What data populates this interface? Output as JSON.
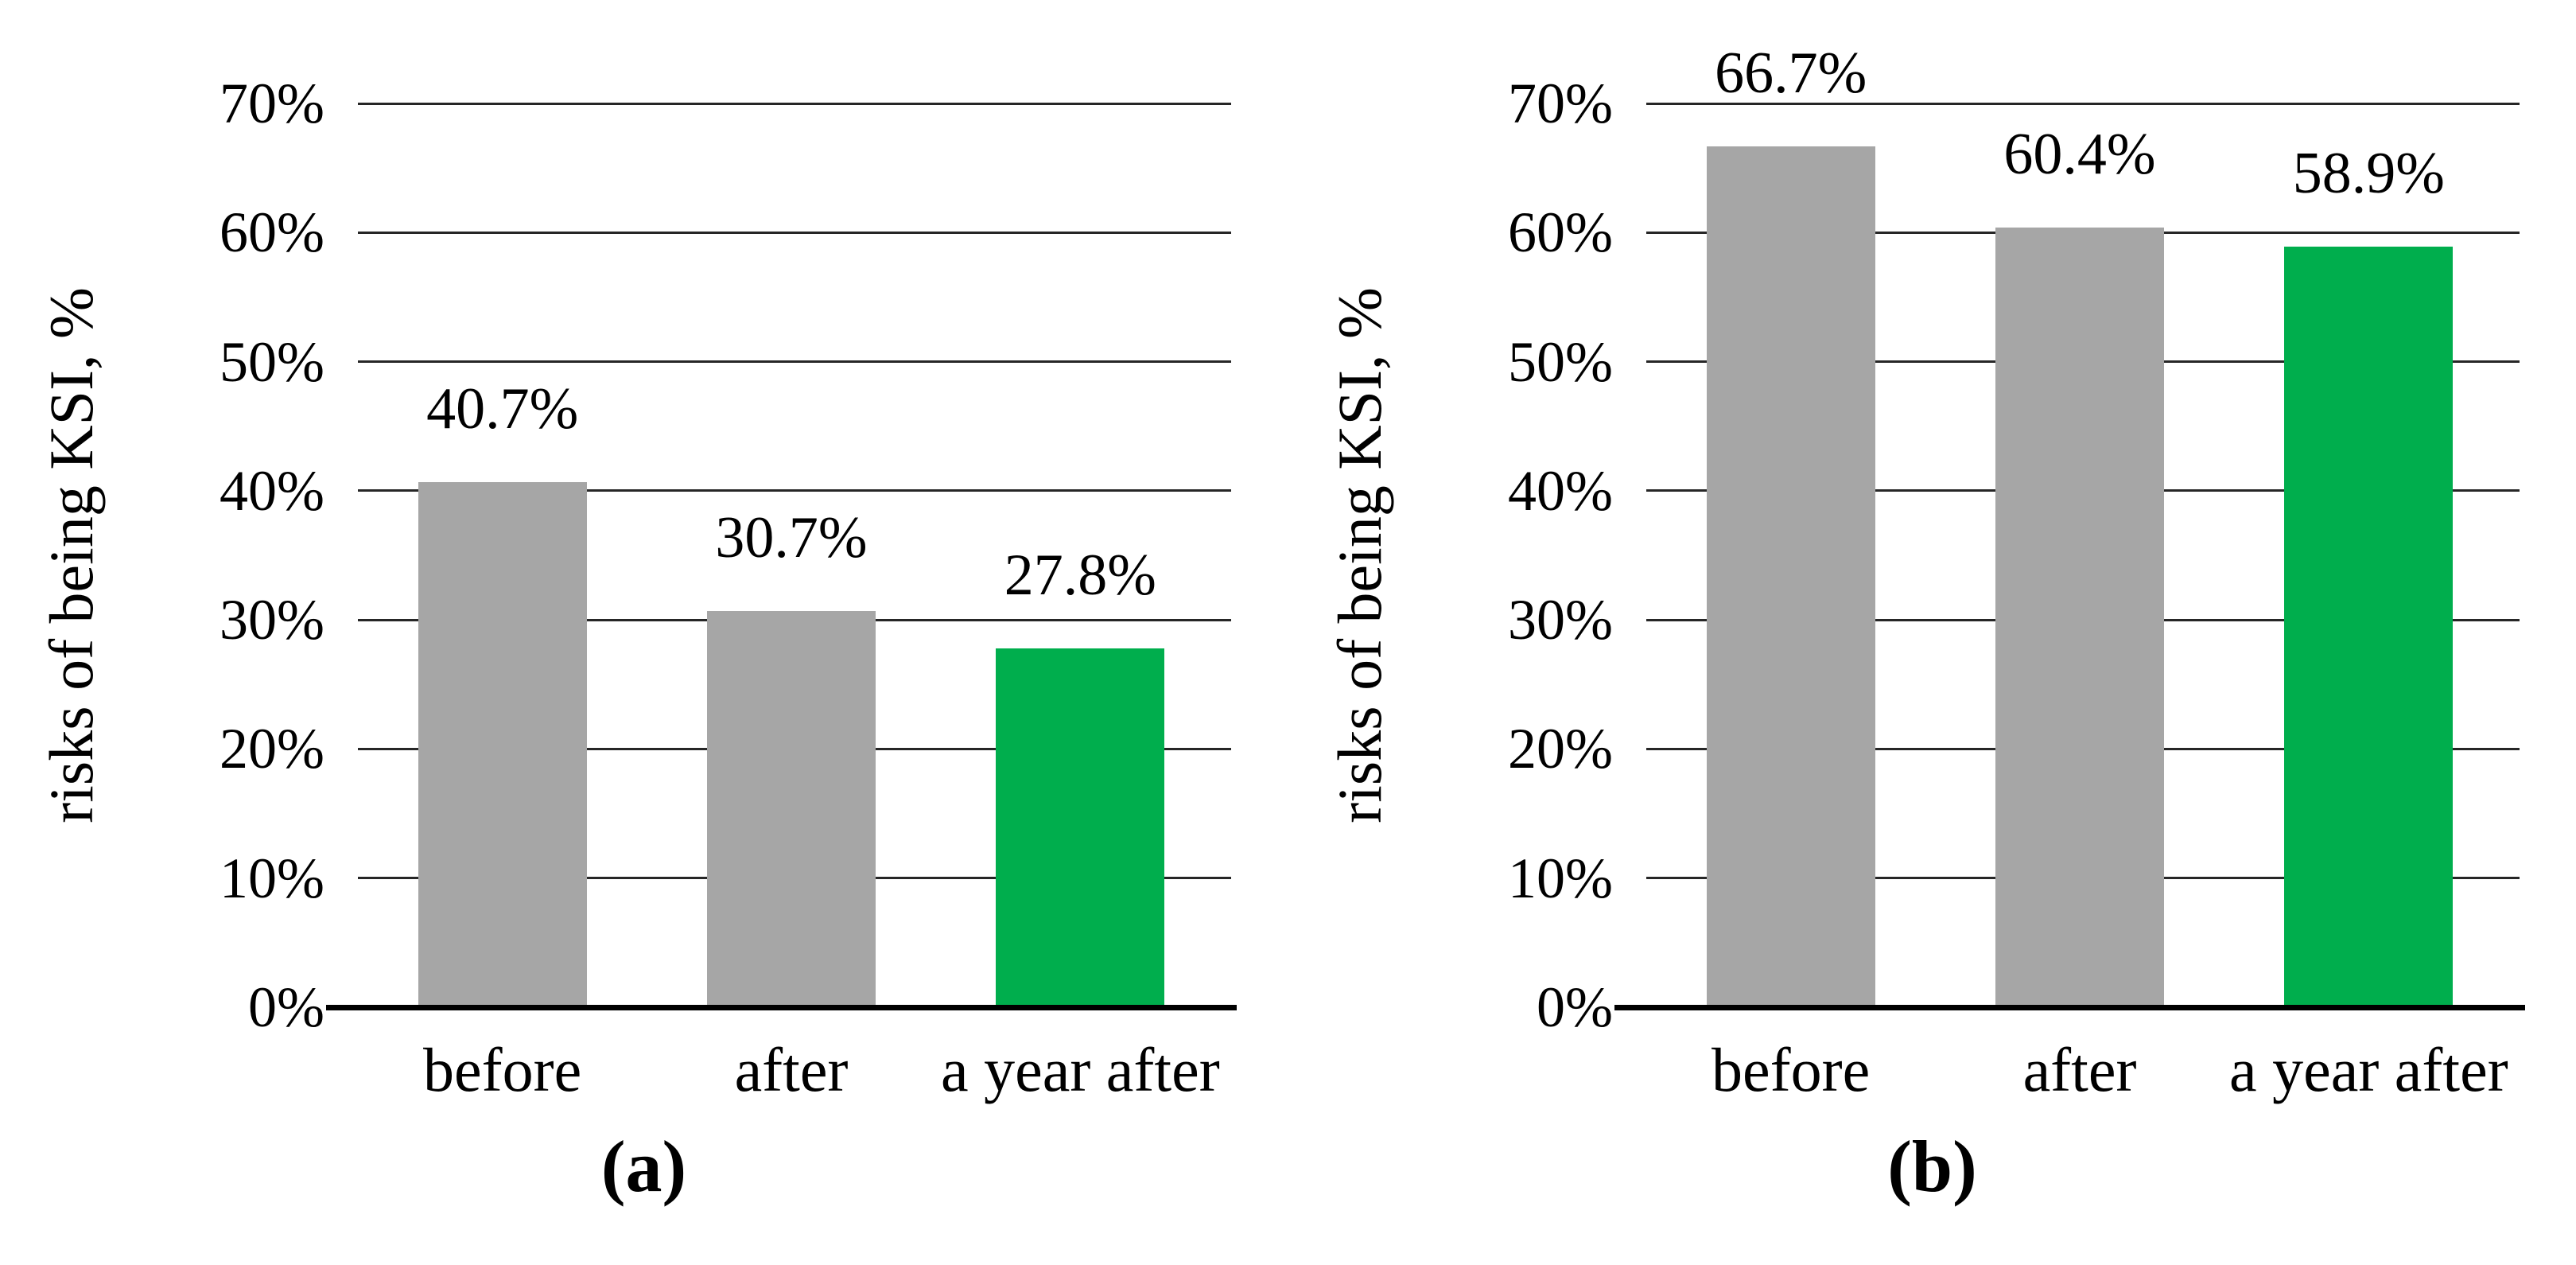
{
  "figure": {
    "background": "#ffffff",
    "text_color": "#000000",
    "gridline_color": "#262626",
    "axis_color": "#000000"
  },
  "chart_data": [
    {
      "type": "bar",
      "panel": "a",
      "caption": "(a)",
      "title": "",
      "xlabel": "",
      "ylabel": "risks of being KSI, %",
      "categories": [
        "before",
        "after",
        "a year after"
      ],
      "values": [
        40.7,
        30.7,
        27.8
      ],
      "value_labels": [
        "40.7%",
        "30.7%",
        "27.8%"
      ],
      "bar_colors": [
        "#A6A6A6",
        "#A6A6A6",
        "#00AE4D"
      ],
      "yticks": [
        "0%",
        "10%",
        "20%",
        "30%",
        "40%",
        "50%",
        "60%",
        "70%"
      ],
      "ylim": [
        0,
        70
      ],
      "grid": "horizontal",
      "legend": "none"
    },
    {
      "type": "bar",
      "panel": "b",
      "caption": "(b)",
      "title": "",
      "xlabel": "",
      "ylabel": "risks of being KSI, %",
      "categories": [
        "before",
        "after",
        "a year after"
      ],
      "values": [
        66.7,
        60.4,
        58.9
      ],
      "value_labels": [
        "66.7%",
        "60.4%",
        "58.9%"
      ],
      "bar_colors": [
        "#A6A6A6",
        "#A6A6A6",
        "#00AE4D"
      ],
      "yticks": [
        "0%",
        "10%",
        "20%",
        "30%",
        "40%",
        "50%",
        "60%",
        "70%"
      ],
      "ylim": [
        0,
        70
      ],
      "grid": "horizontal",
      "legend": "none"
    }
  ]
}
